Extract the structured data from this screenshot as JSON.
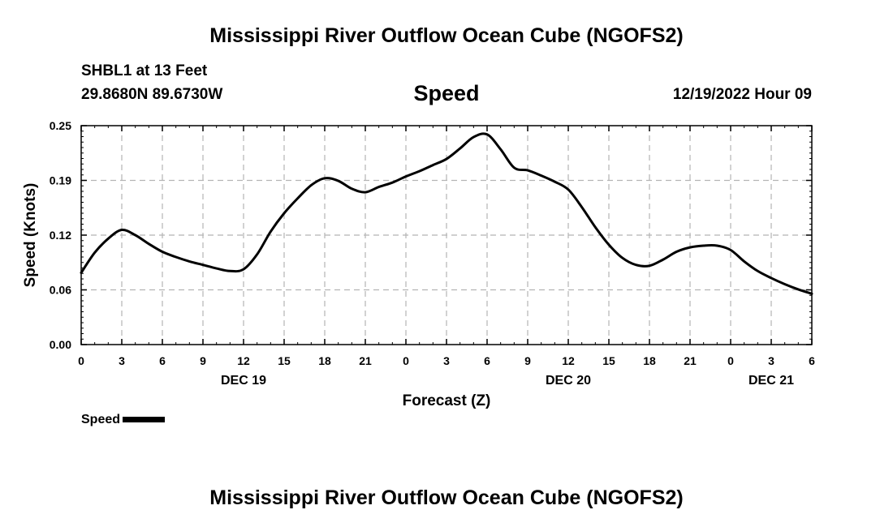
{
  "page": {
    "title": "Mississippi River Outflow Ocean Cube (NGOFS2)",
    "footer_title": "Mississippi River Outflow Ocean Cube (NGOFS2)",
    "station": "SHBL1 at 13 Feet",
    "coordinates": "29.8680N  89.6730W",
    "run_time": "12/19/2022 Hour 09"
  },
  "chart_data": {
    "type": "line",
    "title": "Speed",
    "xlabel": "Forecast (Z)",
    "ylabel": "Speed (Knots)",
    "x_unit": "hours",
    "xlim": [
      0,
      54
    ],
    "ylim": [
      0,
      0.25
    ],
    "y_ticks": [
      "0.00",
      "0.06",
      "0.12",
      "0.19",
      "0.25"
    ],
    "y_tick_values": [
      0,
      0.0625,
      0.125,
      0.1875,
      0.25
    ],
    "x_ticks": [
      "0",
      "3",
      "6",
      "9",
      "12",
      "15",
      "18",
      "21",
      "0",
      "3",
      "6",
      "9",
      "12",
      "15",
      "18",
      "21",
      "0",
      "3",
      "6"
    ],
    "x_tick_values": [
      0,
      3,
      6,
      9,
      12,
      15,
      18,
      21,
      24,
      27,
      30,
      33,
      36,
      39,
      42,
      45,
      48,
      51,
      54
    ],
    "date_labels": [
      {
        "label": "DEC 19",
        "x": 12
      },
      {
        "label": "DEC 20",
        "x": 36
      },
      {
        "label": "DEC 21",
        "x": 51
      }
    ],
    "grid": true,
    "legend": "bottom-left",
    "series": [
      {
        "name": "Speed",
        "color": "#000000",
        "x": [
          0,
          1,
          2,
          3,
          4,
          5,
          6,
          7,
          8,
          9,
          10,
          11,
          12,
          13,
          14,
          15,
          16,
          17,
          18,
          19,
          20,
          21,
          22,
          23,
          24,
          25,
          26,
          27,
          28,
          29,
          30,
          31,
          32,
          33,
          34,
          35,
          36,
          37,
          38,
          39,
          40,
          41,
          42,
          43,
          44,
          45,
          46,
          47,
          48,
          49,
          50,
          51,
          52,
          53,
          54
        ],
        "y": [
          0.082,
          0.105,
          0.121,
          0.131,
          0.125,
          0.115,
          0.106,
          0.1,
          0.095,
          0.091,
          0.087,
          0.084,
          0.086,
          0.103,
          0.129,
          0.15,
          0.167,
          0.182,
          0.19,
          0.187,
          0.178,
          0.174,
          0.18,
          0.185,
          0.192,
          0.198,
          0.205,
          0.212,
          0.224,
          0.237,
          0.24,
          0.223,
          0.202,
          0.199,
          0.193,
          0.186,
          0.177,
          0.157,
          0.134,
          0.114,
          0.099,
          0.091,
          0.09,
          0.097,
          0.106,
          0.111,
          0.113,
          0.113,
          0.108,
          0.095,
          0.084,
          0.076,
          0.069,
          0.063,
          0.058
        ]
      }
    ]
  }
}
